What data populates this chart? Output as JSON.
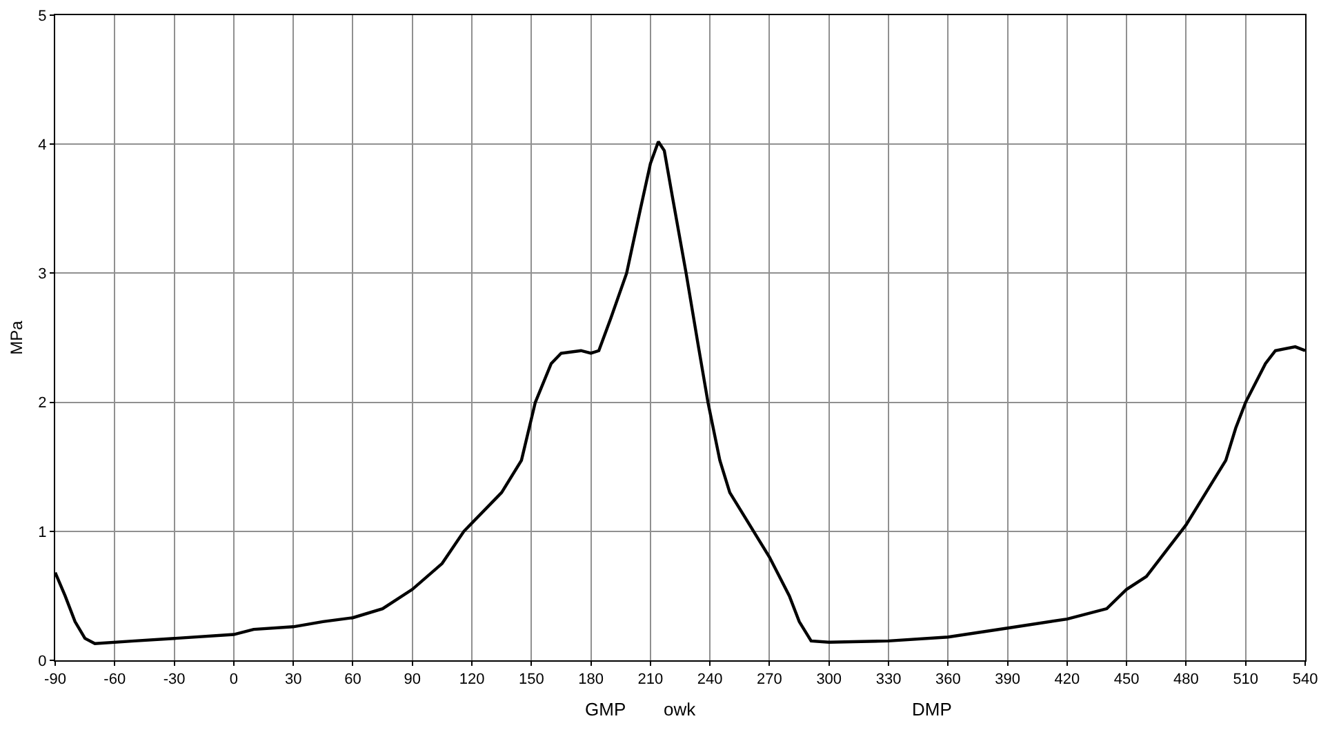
{
  "chart_data": {
    "type": "line",
    "ylabel": "MPa",
    "x": [
      -90,
      -85,
      -80,
      -75,
      -70,
      -50,
      -30,
      0,
      10,
      30,
      45,
      60,
      75,
      90,
      105,
      116,
      135,
      145,
      152,
      160,
      165,
      175,
      180,
      184,
      190,
      198,
      205,
      210,
      214,
      217,
      221,
      228,
      234,
      239,
      245,
      250,
      262,
      270,
      280,
      285,
      291,
      300,
      330,
      360,
      390,
      420,
      440,
      450,
      460,
      470,
      480,
      490,
      500,
      505,
      510,
      520,
      525,
      535,
      540
    ],
    "series": [
      {
        "color": "#000000",
        "values": [
          0.68,
          0.5,
          0.3,
          0.17,
          0.13,
          0.15,
          0.17,
          0.2,
          0.24,
          0.26,
          0.3,
          0.33,
          0.4,
          0.55,
          0.75,
          1.0,
          1.3,
          1.55,
          2.0,
          2.3,
          2.38,
          2.4,
          2.38,
          2.4,
          2.65,
          3.0,
          3.5,
          3.85,
          4.02,
          3.95,
          3.6,
          3.0,
          2.45,
          2.0,
          1.55,
          1.3,
          1.0,
          0.8,
          0.5,
          0.3,
          0.15,
          0.14,
          0.15,
          0.18,
          0.25,
          0.32,
          0.4,
          0.55,
          0.65,
          0.85,
          1.05,
          1.3,
          1.55,
          1.8,
          2.0,
          2.3,
          2.4,
          2.43,
          2.4
        ]
      }
    ],
    "xlim": [
      -90,
      540
    ],
    "xticks": [
      -90,
      -60,
      -30,
      0,
      30,
      60,
      90,
      120,
      150,
      180,
      210,
      240,
      270,
      300,
      330,
      360,
      390,
      420,
      450,
      480,
      510,
      540
    ],
    "ylim": [
      0,
      5
    ],
    "yticks": [
      0,
      1,
      2,
      3,
      4,
      5
    ],
    "grid": true,
    "marker": "none",
    "line_style": "solid",
    "annotations": [
      "GMP",
      "owk",
      "DMP"
    ]
  }
}
